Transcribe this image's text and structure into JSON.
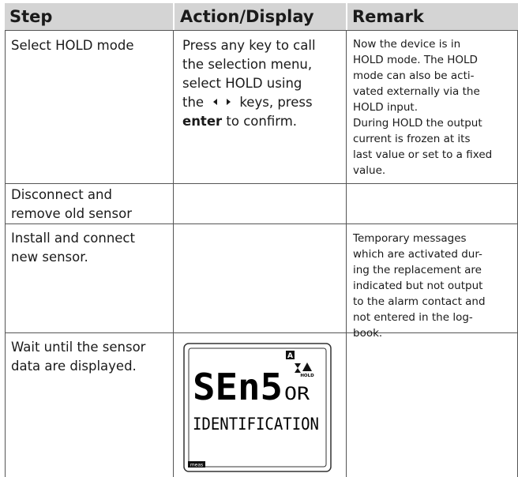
{
  "header": {
    "step": "Step",
    "action": "Action/Display",
    "remark": "Remark"
  },
  "rows": [
    {
      "step": [
        "Select HOLD mode"
      ],
      "action": {
        "lines": [
          "Press any key to call",
          "the selection menu,",
          "select HOLD using"
        ],
        "line4": {
          "before": "the",
          "after": "keys, press"
        },
        "line5": {
          "bold": "enter",
          "after": "to confirm."
        }
      },
      "remark": [
        "Now the device is in",
        "HOLD mode. The HOLD",
        "mode can also be acti-",
        "vated externally via the",
        "HOLD input.",
        "During HOLD the output",
        "current is frozen at its",
        "last value or set to a fixed",
        "value."
      ]
    },
    {
      "step": [
        "Disconnect and",
        "remove old sensor"
      ]
    },
    {
      "step": [
        "Install and connect",
        "new sensor."
      ],
      "remark": [
        "Temporary messages",
        "which are activated dur-",
        "ing the replacement are",
        "indicated but not output",
        "to the alarm contact and",
        "not entered in the log-",
        "book."
      ]
    },
    {
      "step": [
        "Wait until the sensor",
        "data are displayed."
      ],
      "display": {
        "main": "SEn5",
        "suffix": "OR",
        "line2": "IDENTIFICATION",
        "badge": "A",
        "hold": "HOLD",
        "mode": "meas"
      }
    }
  ]
}
